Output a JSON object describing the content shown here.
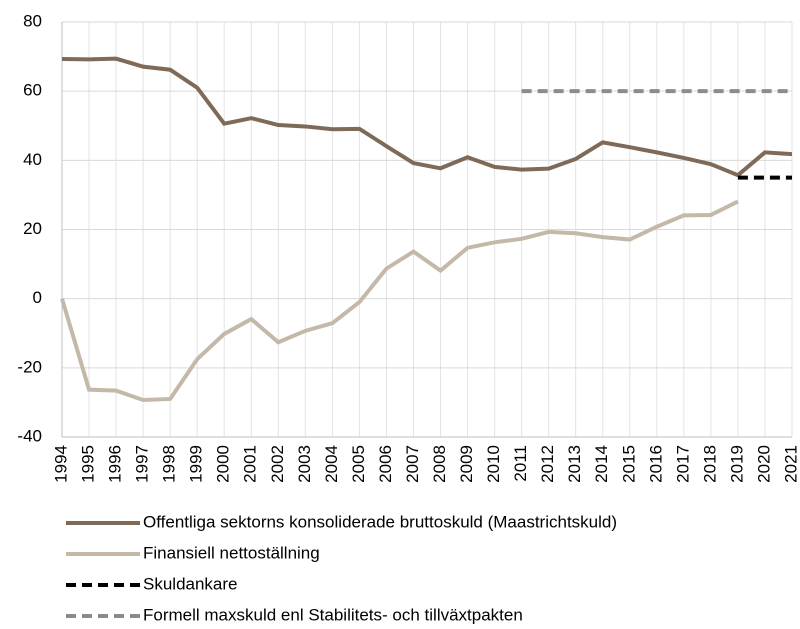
{
  "chart_data": {
    "type": "line",
    "categories": [
      "1994",
      "1995",
      "1996",
      "1997",
      "1998",
      "1999",
      "2000",
      "2001",
      "2002",
      "2003",
      "2004",
      "2005",
      "2006",
      "2007",
      "2008",
      "2009",
      "2010",
      "2011",
      "2012",
      "2013",
      "2014",
      "2015",
      "2016",
      "2017",
      "2018",
      "2019",
      "2020",
      "2021"
    ],
    "series": [
      {
        "name": "Offentliga sektorns konsoliderade bruttoskuld (Maastrichtskuld)",
        "color": "#7f6a58",
        "dashed": false,
        "values": [
          69.3,
          69.2,
          69.4,
          67.1,
          66.2,
          61,
          50.6,
          52.2,
          50.2,
          49.8,
          49,
          49.1,
          44.1,
          39.2,
          37.7,
          40.9,
          38.1,
          37.3,
          37.6,
          40.4,
          45.2,
          43.8,
          42.3,
          40.7,
          38.9,
          35.7,
          42.3,
          41.8
        ]
      },
      {
        "name": "Finansiell nettoställning",
        "color": "#c4b8a8",
        "dashed": false,
        "values": [
          0,
          -26.3,
          -26.6,
          -29.3,
          -29,
          -17.5,
          -10.2,
          -5.9,
          -12.6,
          -9.3,
          -7.1,
          -1,
          8.7,
          13.6,
          8.1,
          14.7,
          16.3,
          17.3,
          19.3,
          18.9,
          17.8,
          17.1,
          20.8,
          24.1,
          24.2,
          28.1,
          null,
          null
        ]
      },
      {
        "name": "Skuldankare",
        "color": "#000000",
        "dashed": true,
        "values": [
          null,
          null,
          null,
          null,
          null,
          null,
          null,
          null,
          null,
          null,
          null,
          null,
          null,
          null,
          null,
          null,
          null,
          null,
          null,
          null,
          null,
          null,
          null,
          null,
          null,
          35,
          35,
          35
        ]
      },
      {
        "name": "Formell maxskuld enl Stabilitets- och tillväxtpakten",
        "color": "#8c8c8c",
        "dashed": true,
        "values": [
          null,
          null,
          null,
          null,
          null,
          null,
          null,
          null,
          null,
          null,
          null,
          null,
          null,
          null,
          null,
          null,
          null,
          60,
          60,
          60,
          60,
          60,
          60,
          60,
          60,
          60,
          60,
          60
        ]
      }
    ],
    "ylim": [
      -40,
      80
    ],
    "yticks": [
      -40,
      -20,
      0,
      20,
      40,
      60,
      80
    ],
    "grid": true
  }
}
